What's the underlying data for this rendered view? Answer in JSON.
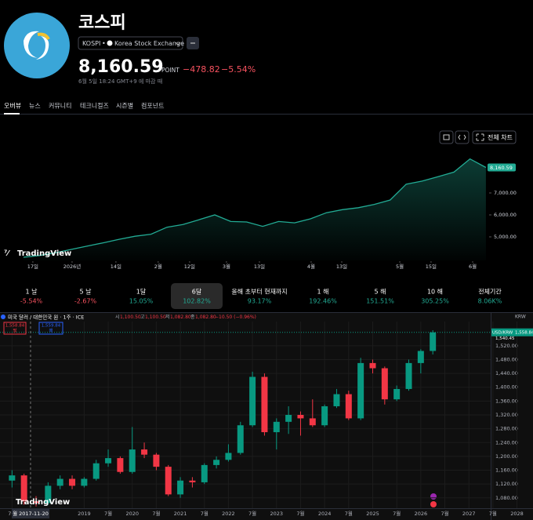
{
  "header": {
    "title": "코스피",
    "exchange_symbol": "KOSPI",
    "exchange_name": "Korea Stock Exchange",
    "price": "8,160.59",
    "unit": "POINT",
    "change": "−478.82",
    "change_percent": "−5.54%",
    "status": "6월 5일 18:24 GMT+9 에 마감 때"
  },
  "tabs": [
    "오버뷰",
    "뉴스",
    "커뮤니티",
    "테크니컬즈",
    "시즌별",
    "컴포넌트"
  ],
  "toolbar": {
    "full_chart": "전체 차트"
  },
  "logo_text": "TradingView",
  "performance": [
    {
      "label": "1 날",
      "value": "-5.54%"
    },
    {
      "label": "5 날",
      "value": "-2.67%"
    },
    {
      "label": "1달",
      "value": "15.05%"
    },
    {
      "label": "6달",
      "value": "102.82%"
    },
    {
      "label": "올해 초부터 현재까지",
      "value": "93.17%"
    },
    {
      "label": "1 해",
      "value": "192.46%"
    },
    {
      "label": "5 해",
      "value": "151.51%"
    },
    {
      "label": "10 해",
      "value": "305.25%"
    },
    {
      "label": "전체기간",
      "value": "8.06K%"
    }
  ],
  "selected_period": 3,
  "chart_data": [
    {
      "type": "area",
      "color": "#22ab94",
      "values": [
        4070,
        4150,
        4280,
        4430,
        4580,
        4730,
        4890,
        5030,
        5120,
        5440,
        5560,
        5780,
        6000,
        5700,
        5680,
        5480,
        5700,
        5640,
        5820,
        6100,
        6240,
        6330,
        6480,
        6680,
        7400,
        7540,
        7740,
        7950,
        8550,
        8160.59
      ],
      "xlim": [
        -1.47,
        29.25
      ],
      "ylim": [
        4000,
        9000
      ],
      "yticks": [
        {
          "value": 5000,
          "label": "5,000.00"
        },
        {
          "value": 6000,
          "label": "6,000.00"
        },
        {
          "value": 7000,
          "label": "7,000.00"
        }
      ],
      "xticks": [
        {
          "value": 0.59,
          "label": "17일"
        },
        {
          "value": 3.05,
          "label": "2026년"
        },
        {
          "value": 5.8,
          "label": "14일"
        },
        {
          "value": 8.45,
          "label": "2월"
        },
        {
          "value": 10.42,
          "label": "12일"
        },
        {
          "value": 12.73,
          "label": "3월"
        },
        {
          "value": 14.8,
          "label": "13일"
        },
        {
          "value": 18.04,
          "label": "4월"
        },
        {
          "value": 19.96,
          "label": "13일"
        },
        {
          "value": 23.6,
          "label": "5월"
        },
        {
          "value": 25.56,
          "label": "15일"
        },
        {
          "value": 28.17,
          "label": "6월"
        }
      ]
    },
    {
      "type": "candlestick",
      "title": "미국 달러 / 대한민국 원 · 1주 · ICE",
      "legend": {
        "open_label": "시",
        "open": "1,100.50",
        "high_label": "고",
        "high": "1,100.50",
        "low_label": "저",
        "low": "1,082.80",
        "close_label": "종",
        "close": "1,082.80",
        "change": "−10.50 (−0.96%)"
      },
      "sell": "1,558.84",
      "sell_label": "팔",
      "buy": "1,559.84",
      "buy_label": "매",
      "currency": "KRW",
      "symbol_tag": "USD/KRW",
      "last_label": "1,558.84",
      "second_label": "1,540.45",
      "up_color": "#089981",
      "down_color": "#f23645",
      "x": [
        "2017-07",
        "2017-10",
        "2018-01",
        "2018-04",
        "2018-07",
        "2018-10",
        "2019-01",
        "2019-04",
        "2019-07",
        "2019-10",
        "2020-01",
        "2020-04",
        "2020-07",
        "2020-10",
        "2021-01",
        "2021-04",
        "2021-07",
        "2021-10",
        "2022-01",
        "2022-04",
        "2022-07",
        "2022-10",
        "2023-01",
        "2023-04",
        "2023-07",
        "2023-10",
        "2024-01",
        "2024-04",
        "2024-07",
        "2024-10",
        "2025-01",
        "2025-04",
        "2025-07",
        "2025-10",
        "2026-01",
        "2026-04"
      ],
      "open": [
        1130,
        1145,
        1070,
        1065,
        1115,
        1135,
        1115,
        1135,
        1180,
        1195,
        1155,
        1220,
        1205,
        1170,
        1090,
        1130,
        1125,
        1175,
        1190,
        1210,
        1290,
        1430,
        1270,
        1300,
        1320,
        1310,
        1290,
        1345,
        1380,
        1310,
        1470,
        1455,
        1365,
        1395,
        1470,
        1505
      ],
      "high": [
        1160,
        1150,
        1085,
        1125,
        1145,
        1145,
        1140,
        1190,
        1220,
        1200,
        1285,
        1240,
        1210,
        1175,
        1140,
        1140,
        1180,
        1200,
        1235,
        1300,
        1445,
        1440,
        1310,
        1345,
        1330,
        1365,
        1350,
        1395,
        1390,
        1485,
        1480,
        1460,
        1405,
        1480,
        1510,
        1565
      ],
      "low": [
        1110,
        1060,
        1055,
        1060,
        1105,
        1105,
        1110,
        1130,
        1170,
        1150,
        1150,
        1195,
        1160,
        1085,
        1080,
        1110,
        1120,
        1165,
        1185,
        1205,
        1285,
        1260,
        1220,
        1265,
        1260,
        1285,
        1285,
        1340,
        1305,
        1305,
        1440,
        1350,
        1360,
        1390,
        1440,
        1495
      ],
      "close": [
        1145,
        1070,
        1065,
        1115,
        1135,
        1115,
        1135,
        1180,
        1195,
        1155,
        1220,
        1205,
        1170,
        1090,
        1130,
        1125,
        1175,
        1190,
        1210,
        1290,
        1430,
        1270,
        1300,
        1320,
        1310,
        1290,
        1345,
        1380,
        1310,
        1470,
        1455,
        1365,
        1395,
        1470,
        1505,
        1558.84
      ],
      "xlim": [
        "2017-04",
        "2028-05"
      ],
      "ylim": [
        1050,
        1590
      ],
      "yticks": [
        {
          "value": 1080,
          "label": "1,080.00"
        },
        {
          "value": 1120,
          "label": "1,120.00"
        },
        {
          "value": 1160,
          "label": "1,160.00"
        },
        {
          "value": 1200,
          "label": "1,200.00"
        },
        {
          "value": 1240,
          "label": "1,240.00"
        },
        {
          "value": 1280,
          "label": "1,280.00"
        },
        {
          "value": 1320,
          "label": "1,320.00"
        },
        {
          "value": 1360,
          "label": "1,360.00"
        },
        {
          "value": 1400,
          "label": "1,400.00"
        },
        {
          "value": 1440,
          "label": "1,440.00"
        },
        {
          "value": 1480,
          "label": "1,480.00"
        },
        {
          "value": 1520,
          "label": "1,520.00"
        }
      ],
      "xticks": [
        {
          "value": "2017-07",
          "label": "7월"
        },
        {
          "value": "2019-01",
          "label": "2019"
        },
        {
          "value": "2019-07",
          "label": "7월"
        },
        {
          "value": "2020-01",
          "label": "2020"
        },
        {
          "value": "2020-07",
          "label": "7월"
        },
        {
          "value": "2021-01",
          "label": "2021"
        },
        {
          "value": "2021-07",
          "label": "7월"
        },
        {
          "value": "2022-01",
          "label": "2022"
        },
        {
          "value": "2022-07",
          "label": "7월"
        },
        {
          "value": "2023-01",
          "label": "2023"
        },
        {
          "value": "2023-07",
          "label": "7월"
        },
        {
          "value": "2024-01",
          "label": "2024"
        },
        {
          "value": "2024-07",
          "label": "7월"
        },
        {
          "value": "2025-01",
          "label": "2025"
        },
        {
          "value": "2025-07",
          "label": "7월"
        },
        {
          "value": "2026-01",
          "label": "2026"
        },
        {
          "value": "2026-07",
          "label": "7월"
        },
        {
          "value": "2027-01",
          "label": "2027"
        },
        {
          "value": "2027-07",
          "label": "7월"
        },
        {
          "value": "2028-01",
          "label": "2028"
        }
      ],
      "crosshair": {
        "x": "2017-11-20",
        "label": "월 2017-11-20"
      }
    }
  ]
}
